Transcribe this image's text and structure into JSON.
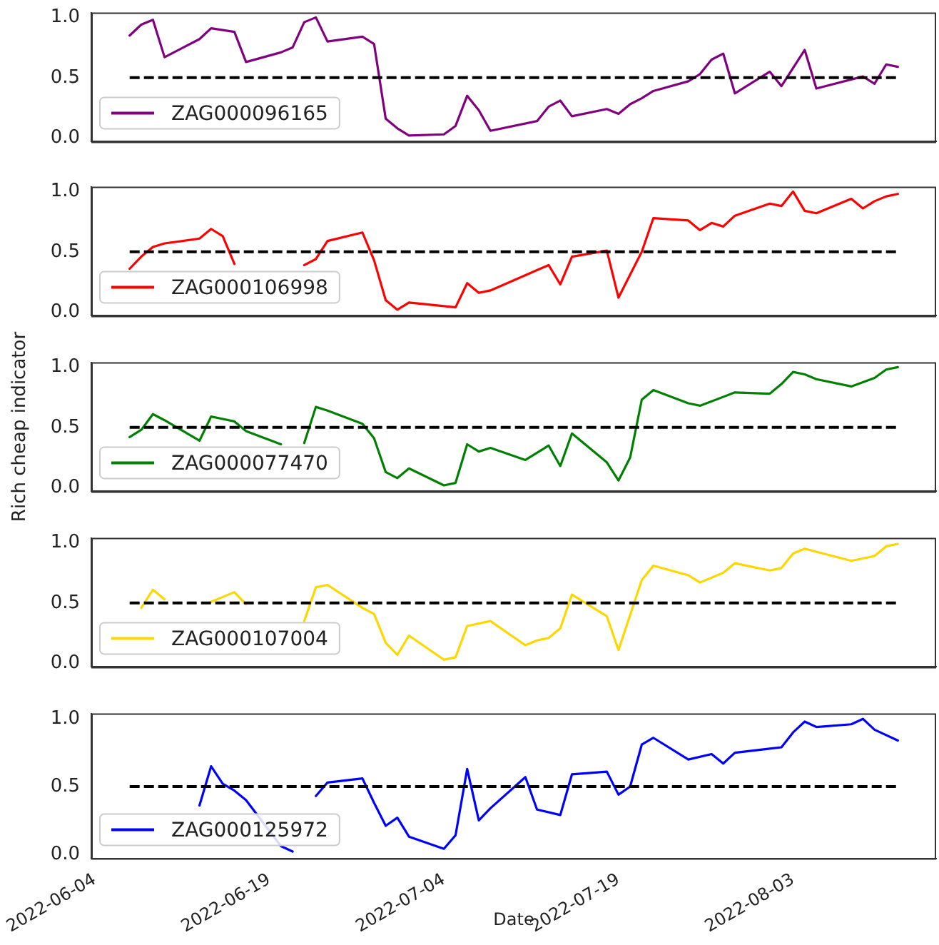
{
  "chart_data": [
    {
      "type": "line",
      "xlim": [
        "2022-06-03T17:00",
        "2022-08-15T07:00"
      ],
      "ylim": [
        -0.03,
        1.04
      ],
      "yticks": [
        {
          "value": 0,
          "label": "0.0"
        },
        {
          "value": 0.5,
          "label": "0.5"
        },
        {
          "value": 1,
          "label": "1.0"
        }
      ],
      "tick_labels": "y",
      "legend": "bottom left",
      "marker": "none",
      "line_style": "solid",
      "ref_lines": [
        {
          "axis": "y",
          "value": 0.5,
          "color": "#000000",
          "line_style": "dashed"
        }
      ],
      "series": [
        {
          "name": "ZAG000096165",
          "color": "#800080",
          "x": [
            "2022-06-07",
            "2022-06-08",
            "2022-06-09",
            "2022-06-10",
            "2022-06-13",
            "2022-06-14",
            "2022-06-16",
            "2022-06-17",
            "2022-06-20",
            "2022-06-21",
            "2022-06-22",
            "2022-06-23",
            "2022-06-24",
            "2022-06-27",
            "2022-06-28",
            "2022-06-29",
            "2022-06-30",
            "2022-07-01",
            "2022-07-04",
            "2022-07-05",
            "2022-07-06",
            "2022-07-07",
            "2022-07-08",
            "2022-07-12",
            "2022-07-13",
            "2022-07-14",
            "2022-07-15",
            "2022-07-18",
            "2022-07-19",
            "2022-07-20",
            "2022-07-21",
            "2022-07-22",
            "2022-07-25",
            "2022-07-26",
            "2022-07-27",
            "2022-07-28",
            "2022-07-29",
            "2022-08-01",
            "2022-08-02",
            "2022-08-04",
            "2022-08-05",
            "2022-08-09",
            "2022-08-10",
            "2022-08-11",
            "2022-08-12"
          ],
          "values": [
            0.85,
            0.94,
            0.98,
            0.67,
            0.82,
            0.91,
            0.88,
            0.63,
            0.71,
            0.75,
            0.96,
            1.0,
            0.8,
            0.84,
            0.78,
            0.16,
            0.08,
            0.02,
            0.03,
            0.1,
            0.35,
            0.23,
            0.06,
            0.14,
            0.26,
            0.31,
            0.18,
            0.24,
            0.2,
            0.28,
            0.33,
            0.39,
            0.47,
            0.53,
            0.65,
            0.7,
            0.37,
            0.55,
            0.43,
            0.73,
            0.41,
            0.51,
            0.45,
            0.61,
            0.59
          ]
        }
      ]
    },
    {
      "type": "line",
      "xlim": [
        "2022-06-03T17:00",
        "2022-08-15T07:00"
      ],
      "ylim": [
        -0.03,
        1.04
      ],
      "yticks": [
        {
          "value": 0,
          "label": "0.0"
        },
        {
          "value": 0.5,
          "label": "0.5"
        },
        {
          "value": 1,
          "label": "1.0"
        }
      ],
      "tick_labels": "y",
      "legend": "bottom left",
      "marker": "none",
      "line_style": "solid",
      "ref_lines": [
        {
          "axis": "y",
          "value": 0.5,
          "color": "#000000",
          "line_style": "dashed"
        }
      ],
      "series": [
        {
          "name": "ZAG000106998",
          "color": "#ff0000",
          "x": [
            "2022-06-07",
            "2022-06-08",
            "2022-06-09",
            "2022-06-10",
            "2022-06-13",
            "2022-06-14",
            "2022-06-15",
            "2022-06-16",
            "2022-06-17",
            "2022-06-22",
            "2022-06-23",
            "2022-06-24",
            "2022-06-27",
            "2022-06-28",
            "2022-06-29",
            "2022-06-30",
            "2022-07-01",
            "2022-07-04",
            "2022-07-05",
            "2022-07-06",
            "2022-07-07",
            "2022-07-08",
            "2022-07-13",
            "2022-07-14",
            "2022-07-15",
            "2022-07-18",
            "2022-07-19",
            "2022-07-21",
            "2022-07-22",
            "2022-07-25",
            "2022-07-26",
            "2022-07-27",
            "2022-07-28",
            "2022-07-29",
            "2022-08-01",
            "2022-08-02",
            "2022-08-03",
            "2022-08-04",
            "2022-08-05",
            "2022-08-08",
            "2022-08-09",
            "2022-08-10",
            "2022-08-11",
            "2022-08-12"
          ],
          "values": [
            0.36,
            0.46,
            0.54,
            0.57,
            0.61,
            0.69,
            0.63,
            0.4,
            null,
            0.39,
            0.44,
            0.59,
            0.66,
            0.43,
            0.1,
            0.02,
            0.08,
            0.05,
            0.04,
            0.24,
            0.16,
            0.18,
            0.39,
            0.23,
            0.46,
            0.51,
            0.12,
            0.5,
            0.78,
            0.76,
            0.68,
            0.74,
            0.71,
            0.8,
            0.9,
            0.88,
            1.0,
            0.84,
            0.82,
            0.94,
            0.86,
            0.92,
            0.96,
            0.98
          ]
        }
      ]
    },
    {
      "type": "line",
      "ylabel": "Rich cheap indicator",
      "xlim": [
        "2022-06-03T17:00",
        "2022-08-15T07:00"
      ],
      "ylim": [
        -0.03,
        1.04
      ],
      "yticks": [
        {
          "value": 0,
          "label": "0.0"
        },
        {
          "value": 0.5,
          "label": "0.5"
        },
        {
          "value": 1,
          "label": "1.0"
        }
      ],
      "tick_labels": "y",
      "legend": "bottom left",
      "marker": "none",
      "line_style": "solid",
      "ref_lines": [
        {
          "axis": "y",
          "value": 0.5,
          "color": "#000000",
          "line_style": "dashed"
        }
      ],
      "series": [
        {
          "name": "ZAG000077470",
          "color": "#008000",
          "x": [
            "2022-06-07",
            "2022-06-08",
            "2022-06-09",
            "2022-06-10",
            "2022-06-13",
            "2022-06-14",
            "2022-06-15",
            "2022-06-16",
            "2022-06-17",
            "2022-06-20",
            "2022-06-21",
            "2022-06-22",
            "2022-06-23",
            "2022-06-24",
            "2022-06-27",
            "2022-06-28",
            "2022-06-29",
            "2022-06-30",
            "2022-07-01",
            "2022-07-04",
            "2022-07-05",
            "2022-07-06",
            "2022-07-07",
            "2022-07-08",
            "2022-07-11",
            "2022-07-12",
            "2022-07-13",
            "2022-07-14",
            "2022-07-15",
            "2022-07-18",
            "2022-07-19",
            "2022-07-20",
            "2022-07-21",
            "2022-07-22",
            "2022-07-25",
            "2022-07-26",
            "2022-07-29",
            "2022-08-01",
            "2022-08-02",
            "2022-08-03",
            "2022-08-04",
            "2022-08-05",
            "2022-08-08",
            "2022-08-10",
            "2022-08-11",
            "2022-08-12"
          ],
          "values": [
            0.42,
            0.48,
            0.61,
            0.56,
            0.39,
            0.59,
            0.57,
            0.55,
            0.47,
            0.36,
            null,
            0.37,
            0.67,
            0.64,
            0.53,
            0.41,
            0.13,
            0.08,
            0.16,
            0.02,
            0.04,
            0.36,
            0.3,
            0.33,
            0.23,
            0.29,
            0.35,
            0.18,
            0.45,
            0.21,
            0.06,
            0.25,
            0.73,
            0.81,
            0.7,
            0.68,
            0.79,
            0.78,
            0.86,
            0.96,
            0.94,
            0.9,
            0.84,
            0.91,
            0.98,
            1.0
          ]
        }
      ]
    },
    {
      "type": "line",
      "xlim": [
        "2022-06-03T17:00",
        "2022-08-15T07:00"
      ],
      "ylim": [
        -0.03,
        1.04
      ],
      "yticks": [
        {
          "value": 0,
          "label": "0.0"
        },
        {
          "value": 0.5,
          "label": "0.5"
        },
        {
          "value": 1,
          "label": "1.0"
        }
      ],
      "tick_labels": "y",
      "legend": "bottom left",
      "marker": "none",
      "line_style": "solid",
      "ref_lines": [
        {
          "axis": "y",
          "value": 0.5,
          "color": "#000000",
          "line_style": "dashed"
        }
      ],
      "series": [
        {
          "name": "ZAG000107004",
          "color": "#ffd700",
          "x": [
            "2022-06-08",
            "2022-06-09",
            "2022-06-10",
            "2022-06-13",
            "2022-06-14",
            "2022-06-15",
            "2022-06-16",
            "2022-06-17",
            "2022-06-20",
            "2022-06-22",
            "2022-06-23",
            "2022-06-24",
            "2022-06-27",
            "2022-06-28",
            "2022-06-29",
            "2022-06-30",
            "2022-07-01",
            "2022-07-04",
            "2022-07-05",
            "2022-07-06",
            "2022-07-08",
            "2022-07-11",
            "2022-07-12",
            "2022-07-13",
            "2022-07-14",
            "2022-07-15",
            "2022-07-18",
            "2022-07-19",
            "2022-07-21",
            "2022-07-22",
            "2022-07-25",
            "2022-07-26",
            "2022-07-28",
            "2022-07-29",
            "2022-08-01",
            "2022-08-02",
            "2022-08-03",
            "2022-08-04",
            "2022-08-08",
            "2022-08-10",
            "2022-08-11",
            "2022-08-12"
          ],
          "values": [
            0.46,
            0.61,
            0.53,
            null,
            0.51,
            0.55,
            0.59,
            0.49,
            null,
            0.35,
            0.63,
            0.65,
            0.46,
            0.41,
            0.17,
            0.07,
            0.23,
            0.03,
            0.05,
            0.31,
            0.35,
            0.15,
            0.19,
            0.21,
            0.29,
            0.57,
            0.39,
            0.11,
            0.69,
            0.81,
            0.73,
            0.67,
            0.75,
            0.83,
            0.77,
            0.79,
            0.91,
            0.95,
            0.85,
            0.89,
            0.97,
            0.99
          ]
        }
      ]
    },
    {
      "type": "line",
      "xlabel": "Date",
      "xlim": [
        "2022-06-03T17:00",
        "2022-08-15T07:00"
      ],
      "xticks": [
        "2022-06-04",
        "2022-06-19",
        "2022-07-04",
        "2022-07-19",
        "2022-08-03"
      ],
      "ylim": [
        -0.03,
        1.04
      ],
      "yticks": [
        {
          "value": 0,
          "label": "0.0"
        },
        {
          "value": 0.5,
          "label": "0.5"
        },
        {
          "value": 1,
          "label": "1.0"
        }
      ],
      "legend": "bottom left",
      "marker": "none",
      "line_style": "solid",
      "ref_lines": [
        {
          "axis": "y",
          "value": 0.5,
          "color": "#000000",
          "line_style": "dashed"
        }
      ],
      "series": [
        {
          "name": "ZAG000125972",
          "color": "#0000ff",
          "x": [
            "2022-06-13",
            "2022-06-14",
            "2022-06-15",
            "2022-06-16",
            "2022-06-17",
            "2022-06-20",
            "2022-06-21",
            "2022-06-22",
            "2022-06-23",
            "2022-06-24",
            "2022-06-27",
            "2022-06-28",
            "2022-06-29",
            "2022-06-30",
            "2022-07-01",
            "2022-07-04",
            "2022-07-05",
            "2022-07-06",
            "2022-07-07",
            "2022-07-08",
            "2022-07-11",
            "2022-07-12",
            "2022-07-14",
            "2022-07-15",
            "2022-07-18",
            "2022-07-19",
            "2022-07-20",
            "2022-07-21",
            "2022-07-22",
            "2022-07-25",
            "2022-07-27",
            "2022-07-28",
            "2022-07-29",
            "2022-08-01",
            "2022-08-02",
            "2022-08-03",
            "2022-08-04",
            "2022-08-05",
            "2022-08-08",
            "2022-08-09",
            "2022-08-10",
            "2022-08-12"
          ],
          "values": [
            0.36,
            0.65,
            0.52,
            0.47,
            0.4,
            0.06,
            0.02,
            null,
            0.43,
            0.53,
            0.56,
            0.38,
            0.21,
            0.27,
            0.13,
            0.04,
            0.14,
            0.63,
            0.25,
            0.34,
            0.57,
            0.33,
            0.29,
            0.59,
            0.61,
            0.44,
            0.5,
            0.81,
            0.86,
            0.7,
            0.74,
            0.67,
            0.75,
            0.78,
            0.79,
            0.9,
            0.98,
            0.94,
            0.96,
            1.0,
            0.92,
            0.84
          ]
        }
      ]
    }
  ]
}
